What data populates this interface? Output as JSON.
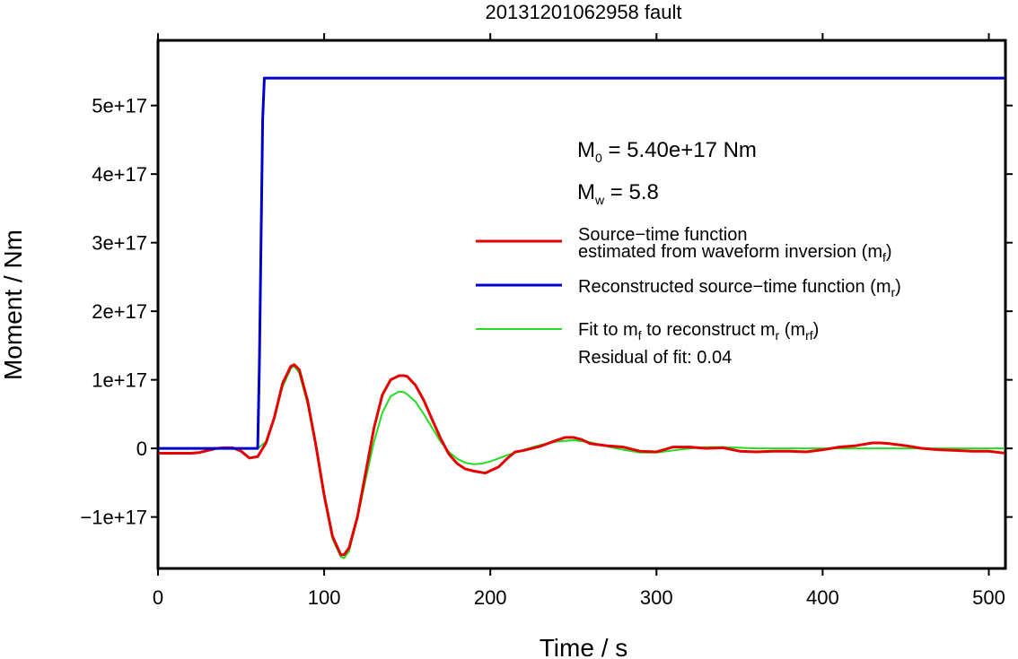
{
  "chart_data": {
    "type": "line",
    "title": "20131201062958 fault",
    "xlabel": "Time / s",
    "ylabel": "Moment / Nm",
    "xlim": [
      0,
      510
    ],
    "ylim": [
      -1.75e+17,
      5.95e+17
    ],
    "x_ticks": [
      0,
      100,
      200,
      300,
      400,
      500
    ],
    "x_tick_labels": [
      "0",
      "100",
      "200",
      "300",
      "400",
      "500"
    ],
    "y_ticks": [
      -1e+17,
      0,
      1e+17,
      2e+17,
      3e+17,
      4e+17,
      5e+17
    ],
    "y_tick_labels": [
      "−1e+17",
      "0",
      "1e+17",
      "2e+17",
      "3e+17",
      "4e+17",
      "5e+17"
    ],
    "grid": false,
    "legend_position": "right",
    "annotations": {
      "m0_label": "M",
      "m0_sub": "0",
      "m0_value": " = 5.40e+17 Nm",
      "mw_label": "M",
      "mw_sub": "w",
      "mw_value": " = 5.8",
      "residual": "Residual of fit: 0.04"
    },
    "legend": {
      "mf_line1": "Source−time function",
      "mf_line2_a": "estimated from waveform inversion (m",
      "mf_line2_sub": "f",
      "mf_line2_b": ")",
      "mr_a": "Reconstructed source−time function (m",
      "mr_sub": "r",
      "mr_b": ")",
      "mrf_a": "Fit to m",
      "mrf_sub1": "f",
      "mrf_b": " to reconstruct m",
      "mrf_sub2": "r",
      "mrf_c": " (m",
      "mrf_sub3": "rf",
      "mrf_d": ")"
    },
    "series": [
      {
        "key": "mf",
        "color": "#e60000",
        "x": [
          0,
          10,
          20,
          25,
          30,
          35,
          40,
          45,
          50,
          55,
          60,
          65,
          70,
          75,
          80,
          82,
          85,
          90,
          95,
          100,
          105,
          110,
          112,
          115,
          120,
          125,
          130,
          135,
          140,
          145,
          148,
          150,
          155,
          160,
          165,
          170,
          175,
          180,
          185,
          190,
          197,
          205,
          210,
          215,
          220,
          230,
          240,
          245,
          250,
          255,
          260,
          270,
          280,
          290,
          300,
          310,
          320,
          330,
          340,
          350,
          360,
          370,
          380,
          390,
          400,
          410,
          420,
          430,
          435,
          440,
          450,
          460,
          470,
          480,
          490,
          500,
          510
        ],
        "y": [
          -7000000000000000.0,
          -7000000000000000.0,
          -7000000000000000.0,
          -6000000000000000.0,
          -3000000000000000.0,
          0.0,
          1000000000000000.0,
          1000000000000000.0,
          -4000000000000000.0,
          -1.4e+16,
          -1.2e+16,
          8000000000000000.0,
          4.5e+16,
          9.5e+16,
          1.2e+17,
          1.22e+17,
          1.15e+17,
          7e+16,
          5000000000000000.0,
          -6.8e+16,
          -1.28e+17,
          -1.55e+17,
          -1.55e+17,
          -1.45e+17,
          -1e+17,
          -3.5e+16,
          3e+16,
          7.8e+16,
          1e+17,
          1.06e+17,
          1.06e+17,
          1.05e+17,
          9.2e+16,
          7e+16,
          4.2e+16,
          1.5e+16,
          -8000000000000000.0,
          -2.2e+16,
          -3e+16,
          -3.3e+16,
          -3.6e+16,
          -2.7e+16,
          -1.5e+16,
          -5000000000000000.0,
          -3000000000000000.0,
          3000000000000000.0,
          1.2e+16,
          1.6e+16,
          1.6e+16,
          1.3e+16,
          7000000000000000.0,
          4000000000000000.0,
          2000000000000000.0,
          -4000000000000000.0,
          -5000000000000000.0,
          2000000000000000.0,
          2000000000000000.0,
          0.0,
          1000000000000000.0,
          -4000000000000000.0,
          -5000000000000000.0,
          -4000000000000000.0,
          -4000000000000000.0,
          -5000000000000000.0,
          -2000000000000000.0,
          2000000000000000.0,
          4000000000000000.0,
          8000000000000000.0,
          8000000000000000.0,
          7000000000000000.0,
          4000000000000000.0,
          0.0,
          -2000000000000000.0,
          -3000000000000000.0,
          -4000000000000000.0,
          -4000000000000000.0,
          -7000000000000000.0
        ]
      },
      {
        "key": "mr",
        "color": "#0000cc",
        "x": [
          0,
          60,
          61,
          62,
          63,
          64,
          510
        ],
        "y": [
          0,
          0,
          1.2e+17,
          3e+17,
          4.8e+17,
          5.4e+17,
          5.4e+17
        ]
      },
      {
        "key": "mrf",
        "color": "#22dd22",
        "x": [
          0,
          50,
          60,
          65,
          70,
          75,
          80,
          82,
          85,
          90,
          95,
          100,
          105,
          110,
          112,
          115,
          120,
          125,
          130,
          135,
          140,
          145,
          148,
          150,
          155,
          160,
          165,
          170,
          175,
          180,
          185,
          190,
          195,
          200,
          210,
          220,
          230,
          240,
          250,
          260,
          270,
          280,
          290,
          300,
          310,
          320,
          330,
          340,
          350,
          360,
          370,
          380,
          400,
          420,
          440,
          460,
          480,
          500,
          510
        ],
        "y": [
          0,
          0,
          0,
          1e+16,
          4.5e+16,
          9e+16,
          1.17e+17,
          1.2e+17,
          1.1e+17,
          6.5e+16,
          2000000000000000.0,
          -7.2e+16,
          -1.32e+17,
          -1.58e+17,
          -1.6e+17,
          -1.5e+17,
          -1.02e+17,
          -4.5e+16,
          1e+16,
          5.2e+16,
          7.6e+16,
          8.3e+16,
          8.2e+16,
          7.9e+16,
          6.8e+16,
          5e+16,
          3e+16,
          1e+16,
          -5000000000000000.0,
          -1.5e+16,
          -2.1e+16,
          -2.3e+16,
          -2.2e+16,
          -1.9e+16,
          -1e+16,
          -2000000000000000.0,
          5000000000000000.0,
          1e+16,
          1.2e+16,
          9000000000000000.0,
          3000000000000000.0,
          -2000000000000000.0,
          -6000000000000000.0,
          -6000000000000000.0,
          -3000000000000000.0,
          0.0,
          2000000000000000.0,
          2000000000000000.0,
          1000000000000000.0,
          0.0,
          0.0,
          0.0,
          0.0,
          0.0,
          0.0,
          0.0,
          0.0,
          0.0,
          0.0
        ]
      }
    ]
  }
}
